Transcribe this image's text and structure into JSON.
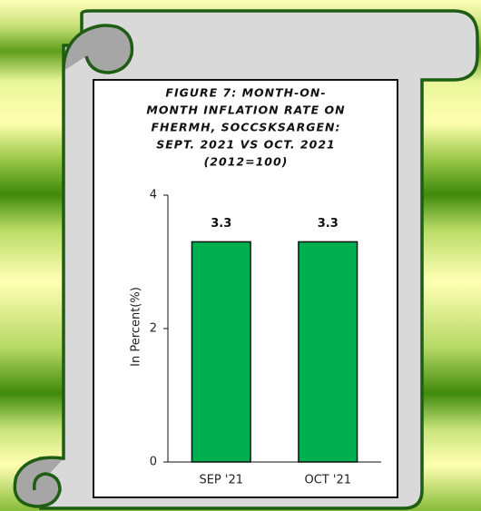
{
  "chart_data": {
    "type": "bar",
    "title": [
      "FIGURE 7: MONTH-ON-",
      "MONTH INFLATION RATE ON",
      "FHERMH, SOCCSKSARGEN:",
      "SEPT. 2021 VS OCT. 2021",
      "(2012=100)"
    ],
    "y_label": "In Percent(%)",
    "categories": [
      "SEP '21",
      "OCT '21"
    ],
    "values": [
      3.3,
      3.3
    ],
    "color": "#00b050",
    "ylim": [
      0,
      4
    ],
    "yticks": [
      0,
      2,
      4
    ],
    "grid": false
  }
}
